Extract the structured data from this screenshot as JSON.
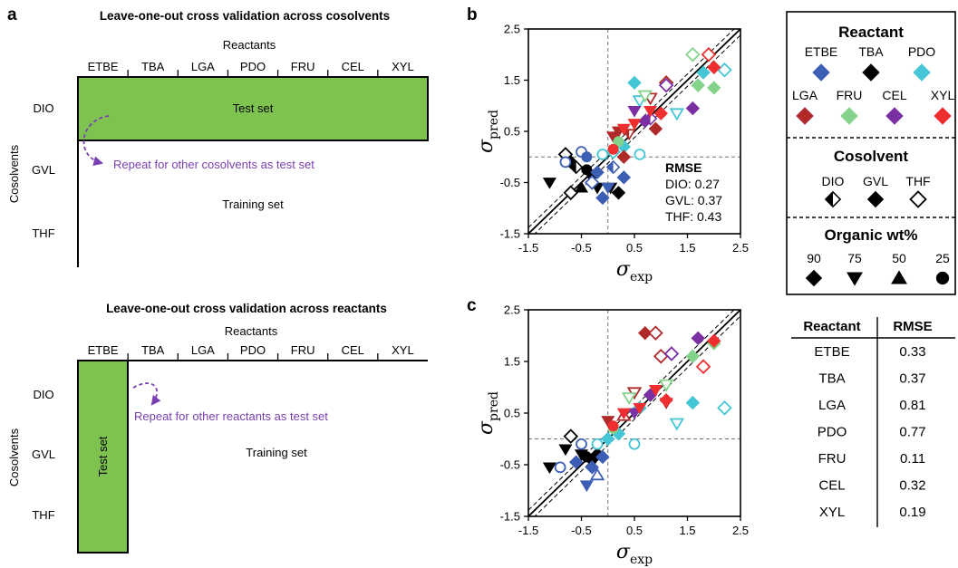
{
  "panels": {
    "a": "a",
    "b": "b",
    "c": "c"
  },
  "colors": {
    "ETBE": "#3d5eb5",
    "TBA": "#000000",
    "PDO": "#45c6d6",
    "LGA": "#b02a2a",
    "FRU": "#84d38a",
    "CEL": "#7a2fa3",
    "XYL": "#ef2f2f",
    "test_fill": "#7ec34f",
    "arrow": "#7a3fb0"
  },
  "schematic_top": {
    "title": "Leave-one-out cross validation across cosolvents",
    "reactants_label": "Reactants",
    "reactants": [
      "ETBE",
      "TBA",
      "LGA",
      "PDO",
      "FRU",
      "CEL",
      "XYL"
    ],
    "cosolvents_label": "Cosolvents",
    "cosolvents": [
      "DIO",
      "GVL",
      "THF"
    ],
    "test_label": "Test set",
    "repeat_text": "Repeat for other cosolvents as test set",
    "training_label": "Training set"
  },
  "schematic_bottom": {
    "title": "Leave-one-out cross validation across reactants",
    "reactants_label": "Reactants",
    "reactants": [
      "ETBE",
      "TBA",
      "LGA",
      "PDO",
      "FRU",
      "CEL",
      "XYL"
    ],
    "cosolvents_label": "Cosolvents",
    "cosolvents": [
      "DIO",
      "GVL",
      "THF"
    ],
    "test_label": "Test set",
    "repeat_text": "Repeat for other reactants as test set",
    "training_label": "Training set"
  },
  "legend": {
    "reactant_title": "Reactant",
    "reactants": [
      "ETBE",
      "TBA",
      "PDO",
      "LGA",
      "FRU",
      "CEL",
      "XYL"
    ],
    "cosolvent_title": "Cosolvent",
    "cosolvents": [
      "DIO",
      "GVL",
      "THF"
    ],
    "organic_title": "Organic wt%",
    "organic": [
      "90",
      "75",
      "50",
      "25"
    ]
  },
  "rmse_table": {
    "headers": [
      "Reactant",
      "RMSE"
    ],
    "rows": [
      [
        "ETBE",
        "0.33"
      ],
      [
        "TBA",
        "0.37"
      ],
      [
        "LGA",
        "0.81"
      ],
      [
        "PDO",
        "0.77"
      ],
      [
        "FRU",
        "0.11"
      ],
      [
        "CEL",
        "0.32"
      ],
      [
        "XYL",
        "0.19"
      ]
    ]
  },
  "chart_data": [
    {
      "type": "scatter",
      "panel": "b",
      "xlabel": "σexp",
      "ylabel": "σpred",
      "xlim": [
        -1.5,
        2.5
      ],
      "ylim": [
        -1.5,
        2.5
      ],
      "xticks": [
        "-1.5",
        "-0.5",
        "0.5",
        "1.5",
        "2.5"
      ],
      "yticks": [
        "2.5",
        "1.5",
        "0.5",
        "-0.5",
        "-1.5"
      ],
      "rmse_title": "RMSE",
      "rmse_lines": [
        "DIO: 0.27",
        "GVL: 0.37",
        "THF: 0.43"
      ],
      "points": [
        {
          "x": -1.1,
          "y": -0.5,
          "r": "TBA",
          "s": "GVL",
          "m": "tri-down"
        },
        {
          "x": -0.8,
          "y": 0.05,
          "r": "TBA",
          "s": "THF",
          "m": "diamond"
        },
        {
          "x": -0.7,
          "y": -0.1,
          "r": "TBA",
          "s": "GVL",
          "m": "diamond"
        },
        {
          "x": -0.6,
          "y": -0.2,
          "r": "TBA",
          "s": "DIO",
          "m": "diamond"
        },
        {
          "x": -0.4,
          "y": -0.25,
          "r": "TBA",
          "s": "GVL",
          "m": "circle"
        },
        {
          "x": -0.3,
          "y": -0.35,
          "r": "TBA",
          "s": "GVL",
          "m": "circle"
        },
        {
          "x": -0.5,
          "y": -0.6,
          "r": "TBA",
          "s": "GVL",
          "m": "tri-up"
        },
        {
          "x": -0.2,
          "y": -0.6,
          "r": "TBA",
          "s": "GVL",
          "m": "tri-down"
        },
        {
          "x": 0.05,
          "y": -0.6,
          "r": "TBA",
          "s": "GVL",
          "m": "tri-down"
        },
        {
          "x": -0.7,
          "y": -0.7,
          "r": "TBA",
          "s": "THF",
          "m": "diamond"
        },
        {
          "x": 0.2,
          "y": -0.7,
          "r": "TBA",
          "s": "GVL",
          "m": "diamond"
        },
        {
          "x": -0.8,
          "y": -0.1,
          "r": "ETBE",
          "s": "THF",
          "m": "circle"
        },
        {
          "x": -0.5,
          "y": 0.1,
          "r": "ETBE",
          "s": "THF",
          "m": "circle"
        },
        {
          "x": -0.4,
          "y": 0.0,
          "r": "ETBE",
          "s": "GVL",
          "m": "circle"
        },
        {
          "x": -0.2,
          "y": -0.3,
          "r": "ETBE",
          "s": "GVL",
          "m": "diamond"
        },
        {
          "x": -0.1,
          "y": -0.8,
          "r": "ETBE",
          "s": "GVL",
          "m": "diamond"
        },
        {
          "x": 0.0,
          "y": -0.6,
          "r": "ETBE",
          "s": "GVL",
          "m": "tri-down"
        },
        {
          "x": 0.3,
          "y": -0.4,
          "r": "ETBE",
          "s": "GVL",
          "m": "diamond"
        },
        {
          "x": 0.1,
          "y": -0.2,
          "r": "ETBE",
          "s": "DIO",
          "m": "diamond"
        },
        {
          "x": -0.3,
          "y": -0.5,
          "r": "ETBE",
          "s": "THF",
          "m": "diamond"
        },
        {
          "x": -0.1,
          "y": 0.05,
          "r": "PDO",
          "s": "THF",
          "m": "circle"
        },
        {
          "x": 0.1,
          "y": 0.1,
          "r": "PDO",
          "s": "THF",
          "m": "diamond"
        },
        {
          "x": 0.3,
          "y": 0.2,
          "r": "PDO",
          "s": "GVL",
          "m": "diamond"
        },
        {
          "x": 0.6,
          "y": 0.05,
          "r": "PDO",
          "s": "THF",
          "m": "circle"
        },
        {
          "x": 0.5,
          "y": 1.45,
          "r": "PDO",
          "s": "GVL",
          "m": "diamond"
        },
        {
          "x": 0.6,
          "y": 1.1,
          "r": "PDO",
          "s": "THF",
          "m": "tri-down"
        },
        {
          "x": 1.3,
          "y": 0.85,
          "r": "PDO",
          "s": "THF",
          "m": "tri-down"
        },
        {
          "x": 1.8,
          "y": 1.65,
          "r": "PDO",
          "s": "GVL",
          "m": "diamond"
        },
        {
          "x": 2.2,
          "y": 1.7,
          "r": "PDO",
          "s": "THF",
          "m": "diamond"
        },
        {
          "x": 0.1,
          "y": 0.4,
          "r": "LGA",
          "s": "GVL",
          "m": "tri-down"
        },
        {
          "x": 0.2,
          "y": 0.5,
          "r": "LGA",
          "s": "GVL",
          "m": "tri-down"
        },
        {
          "x": 0.4,
          "y": 0.45,
          "r": "LGA",
          "s": "DIO",
          "m": "tri-down"
        },
        {
          "x": 0.9,
          "y": 0.55,
          "r": "LGA",
          "s": "GVL",
          "m": "diamond"
        },
        {
          "x": 0.8,
          "y": 1.15,
          "r": "LGA",
          "s": "THF",
          "m": "tri-down"
        },
        {
          "x": 1.1,
          "y": 1.45,
          "r": "LGA",
          "s": "THF",
          "m": "diamond"
        },
        {
          "x": 0.3,
          "y": 0.0,
          "r": "LGA",
          "s": "GVL",
          "m": "diamond"
        },
        {
          "x": 0.2,
          "y": 0.3,
          "r": "FRU",
          "s": "GVL",
          "m": "circle"
        },
        {
          "x": 0.7,
          "y": 1.2,
          "r": "FRU",
          "s": "THF",
          "m": "tri-down"
        },
        {
          "x": 1.6,
          "y": 2.0,
          "r": "FRU",
          "s": "THF",
          "m": "diamond"
        },
        {
          "x": 1.7,
          "y": 1.4,
          "r": "FRU",
          "s": "GVL",
          "m": "diamond"
        },
        {
          "x": 2.0,
          "y": 1.35,
          "r": "FRU",
          "s": "GVL",
          "m": "diamond"
        },
        {
          "x": 0.5,
          "y": 0.9,
          "r": "CEL",
          "s": "GVL",
          "m": "tri-down"
        },
        {
          "x": 0.7,
          "y": 0.7,
          "r": "CEL",
          "s": "GVL",
          "m": "diamond"
        },
        {
          "x": 0.8,
          "y": 0.75,
          "r": "CEL",
          "s": "DIO",
          "m": "diamond"
        },
        {
          "x": 1.1,
          "y": 1.4,
          "r": "CEL",
          "s": "THF",
          "m": "diamond"
        },
        {
          "x": 1.6,
          "y": 0.95,
          "r": "CEL",
          "s": "GVL",
          "m": "diamond"
        },
        {
          "x": 0.1,
          "y": 0.15,
          "r": "XYL",
          "s": "GVL",
          "m": "circle"
        },
        {
          "x": 0.3,
          "y": 0.55,
          "r": "XYL",
          "s": "GVL",
          "m": "tri-down"
        },
        {
          "x": 0.5,
          "y": 0.65,
          "r": "XYL",
          "s": "GVL",
          "m": "tri-down"
        },
        {
          "x": 0.8,
          "y": 0.9,
          "r": "XYL",
          "s": "GVL",
          "m": "tri-down"
        },
        {
          "x": 1.0,
          "y": 0.85,
          "r": "XYL",
          "s": "GVL",
          "m": "diamond"
        },
        {
          "x": 1.9,
          "y": 2.0,
          "r": "XYL",
          "s": "THF",
          "m": "diamond"
        },
        {
          "x": 2.0,
          "y": 1.75,
          "r": "XYL",
          "s": "GVL",
          "m": "diamond"
        }
      ]
    },
    {
      "type": "scatter",
      "panel": "c",
      "xlabel": "σexp",
      "ylabel": "σpred",
      "xlim": [
        -1.5,
        2.5
      ],
      "ylim": [
        -1.5,
        2.5
      ],
      "xticks": [
        "-1.5",
        "-0.5",
        "0.5",
        "1.5",
        "2.5"
      ],
      "yticks": [
        "2.5",
        "1.5",
        "0.5",
        "-0.5",
        "-1.5"
      ],
      "points": [
        {
          "x": -1.1,
          "y": -0.55,
          "r": "TBA",
          "s": "GVL",
          "m": "tri-down"
        },
        {
          "x": -0.7,
          "y": 0.05,
          "r": "TBA",
          "s": "THF",
          "m": "diamond"
        },
        {
          "x": -0.8,
          "y": -0.2,
          "r": "TBA",
          "s": "GVL",
          "m": "tri-down"
        },
        {
          "x": -0.4,
          "y": -0.35,
          "r": "TBA",
          "s": "GVL",
          "m": "circle"
        },
        {
          "x": -0.3,
          "y": -0.4,
          "r": "TBA",
          "s": "GVL",
          "m": "circle"
        },
        {
          "x": -0.2,
          "y": -0.3,
          "r": "TBA",
          "s": "GVL",
          "m": "diamond"
        },
        {
          "x": -0.5,
          "y": -0.3,
          "r": "TBA",
          "s": "GVL",
          "m": "tri-down"
        },
        {
          "x": -0.9,
          "y": -0.55,
          "r": "ETBE",
          "s": "THF",
          "m": "circle"
        },
        {
          "x": -0.5,
          "y": -0.1,
          "r": "ETBE",
          "s": "THF",
          "m": "circle"
        },
        {
          "x": -0.3,
          "y": -0.55,
          "r": "ETBE",
          "s": "GVL",
          "m": "diamond"
        },
        {
          "x": -0.4,
          "y": -0.9,
          "r": "ETBE",
          "s": "GVL",
          "m": "tri-down"
        },
        {
          "x": -0.2,
          "y": -0.7,
          "r": "ETBE",
          "s": "THF",
          "m": "tri-up"
        },
        {
          "x": -0.1,
          "y": -0.35,
          "r": "ETBE",
          "s": "GVL",
          "m": "diamond"
        },
        {
          "x": -0.6,
          "y": -0.45,
          "r": "ETBE",
          "s": "GVL",
          "m": "diamond"
        },
        {
          "x": -0.2,
          "y": -0.1,
          "r": "PDO",
          "s": "THF",
          "m": "circle"
        },
        {
          "x": 0.0,
          "y": 0.0,
          "r": "PDO",
          "s": "GVL",
          "m": "diamond"
        },
        {
          "x": 0.2,
          "y": 0.1,
          "r": "PDO",
          "s": "GVL",
          "m": "diamond"
        },
        {
          "x": 0.5,
          "y": -0.1,
          "r": "PDO",
          "s": "THF",
          "m": "circle"
        },
        {
          "x": 0.6,
          "y": 0.6,
          "r": "PDO",
          "s": "GVL",
          "m": "diamond"
        },
        {
          "x": 1.3,
          "y": 0.3,
          "r": "PDO",
          "s": "THF",
          "m": "tri-down"
        },
        {
          "x": 1.6,
          "y": 0.7,
          "r": "PDO",
          "s": "GVL",
          "m": "diamond"
        },
        {
          "x": 2.2,
          "y": 0.6,
          "r": "PDO",
          "s": "THF",
          "m": "diamond"
        },
        {
          "x": 0.0,
          "y": 0.35,
          "r": "LGA",
          "s": "GVL",
          "m": "tri-down"
        },
        {
          "x": 0.3,
          "y": 0.45,
          "r": "LGA",
          "s": "THF",
          "m": "tri-up"
        },
        {
          "x": 0.5,
          "y": 0.9,
          "r": "LGA",
          "s": "THF",
          "m": "tri-down"
        },
        {
          "x": 0.7,
          "y": 2.05,
          "r": "LGA",
          "s": "GVL",
          "m": "diamond"
        },
        {
          "x": 0.9,
          "y": 2.05,
          "r": "LGA",
          "s": "THF",
          "m": "diamond"
        },
        {
          "x": 1.1,
          "y": 0.7,
          "r": "LGA",
          "s": "GVL",
          "m": "tri-down"
        },
        {
          "x": 1.0,
          "y": 1.6,
          "r": "LGA",
          "s": "THF",
          "m": "diamond"
        },
        {
          "x": 0.1,
          "y": 0.2,
          "r": "FRU",
          "s": "GVL",
          "m": "circle"
        },
        {
          "x": 0.4,
          "y": 0.8,
          "r": "FRU",
          "s": "THF",
          "m": "tri-down"
        },
        {
          "x": 1.1,
          "y": 1.05,
          "r": "FRU",
          "s": "THF",
          "m": "tri-down"
        },
        {
          "x": 1.6,
          "y": 1.6,
          "r": "FRU",
          "s": "GVL",
          "m": "diamond"
        },
        {
          "x": 2.0,
          "y": 1.85,
          "r": "FRU",
          "s": "GVL",
          "m": "diamond"
        },
        {
          "x": 0.5,
          "y": 0.5,
          "r": "CEL",
          "s": "GVL",
          "m": "tri-down"
        },
        {
          "x": 0.8,
          "y": 0.85,
          "r": "CEL",
          "s": "GVL",
          "m": "diamond"
        },
        {
          "x": 1.2,
          "y": 1.65,
          "r": "CEL",
          "s": "THF",
          "m": "diamond"
        },
        {
          "x": 1.7,
          "y": 1.95,
          "r": "CEL",
          "s": "GVL",
          "m": "diamond"
        },
        {
          "x": 0.1,
          "y": 0.25,
          "r": "XYL",
          "s": "GVL",
          "m": "circle"
        },
        {
          "x": 0.3,
          "y": 0.5,
          "r": "XYL",
          "s": "GVL",
          "m": "tri-down"
        },
        {
          "x": 0.6,
          "y": 0.6,
          "r": "XYL",
          "s": "GVL",
          "m": "tri-down"
        },
        {
          "x": 0.9,
          "y": 0.95,
          "r": "XYL",
          "s": "GVL",
          "m": "tri-down"
        },
        {
          "x": 1.1,
          "y": 0.75,
          "r": "XYL",
          "s": "GVL",
          "m": "diamond"
        },
        {
          "x": 1.8,
          "y": 1.4,
          "r": "XYL",
          "s": "THF",
          "m": "diamond"
        },
        {
          "x": 2.0,
          "y": 1.9,
          "r": "XYL",
          "s": "GVL",
          "m": "diamond"
        }
      ]
    }
  ]
}
